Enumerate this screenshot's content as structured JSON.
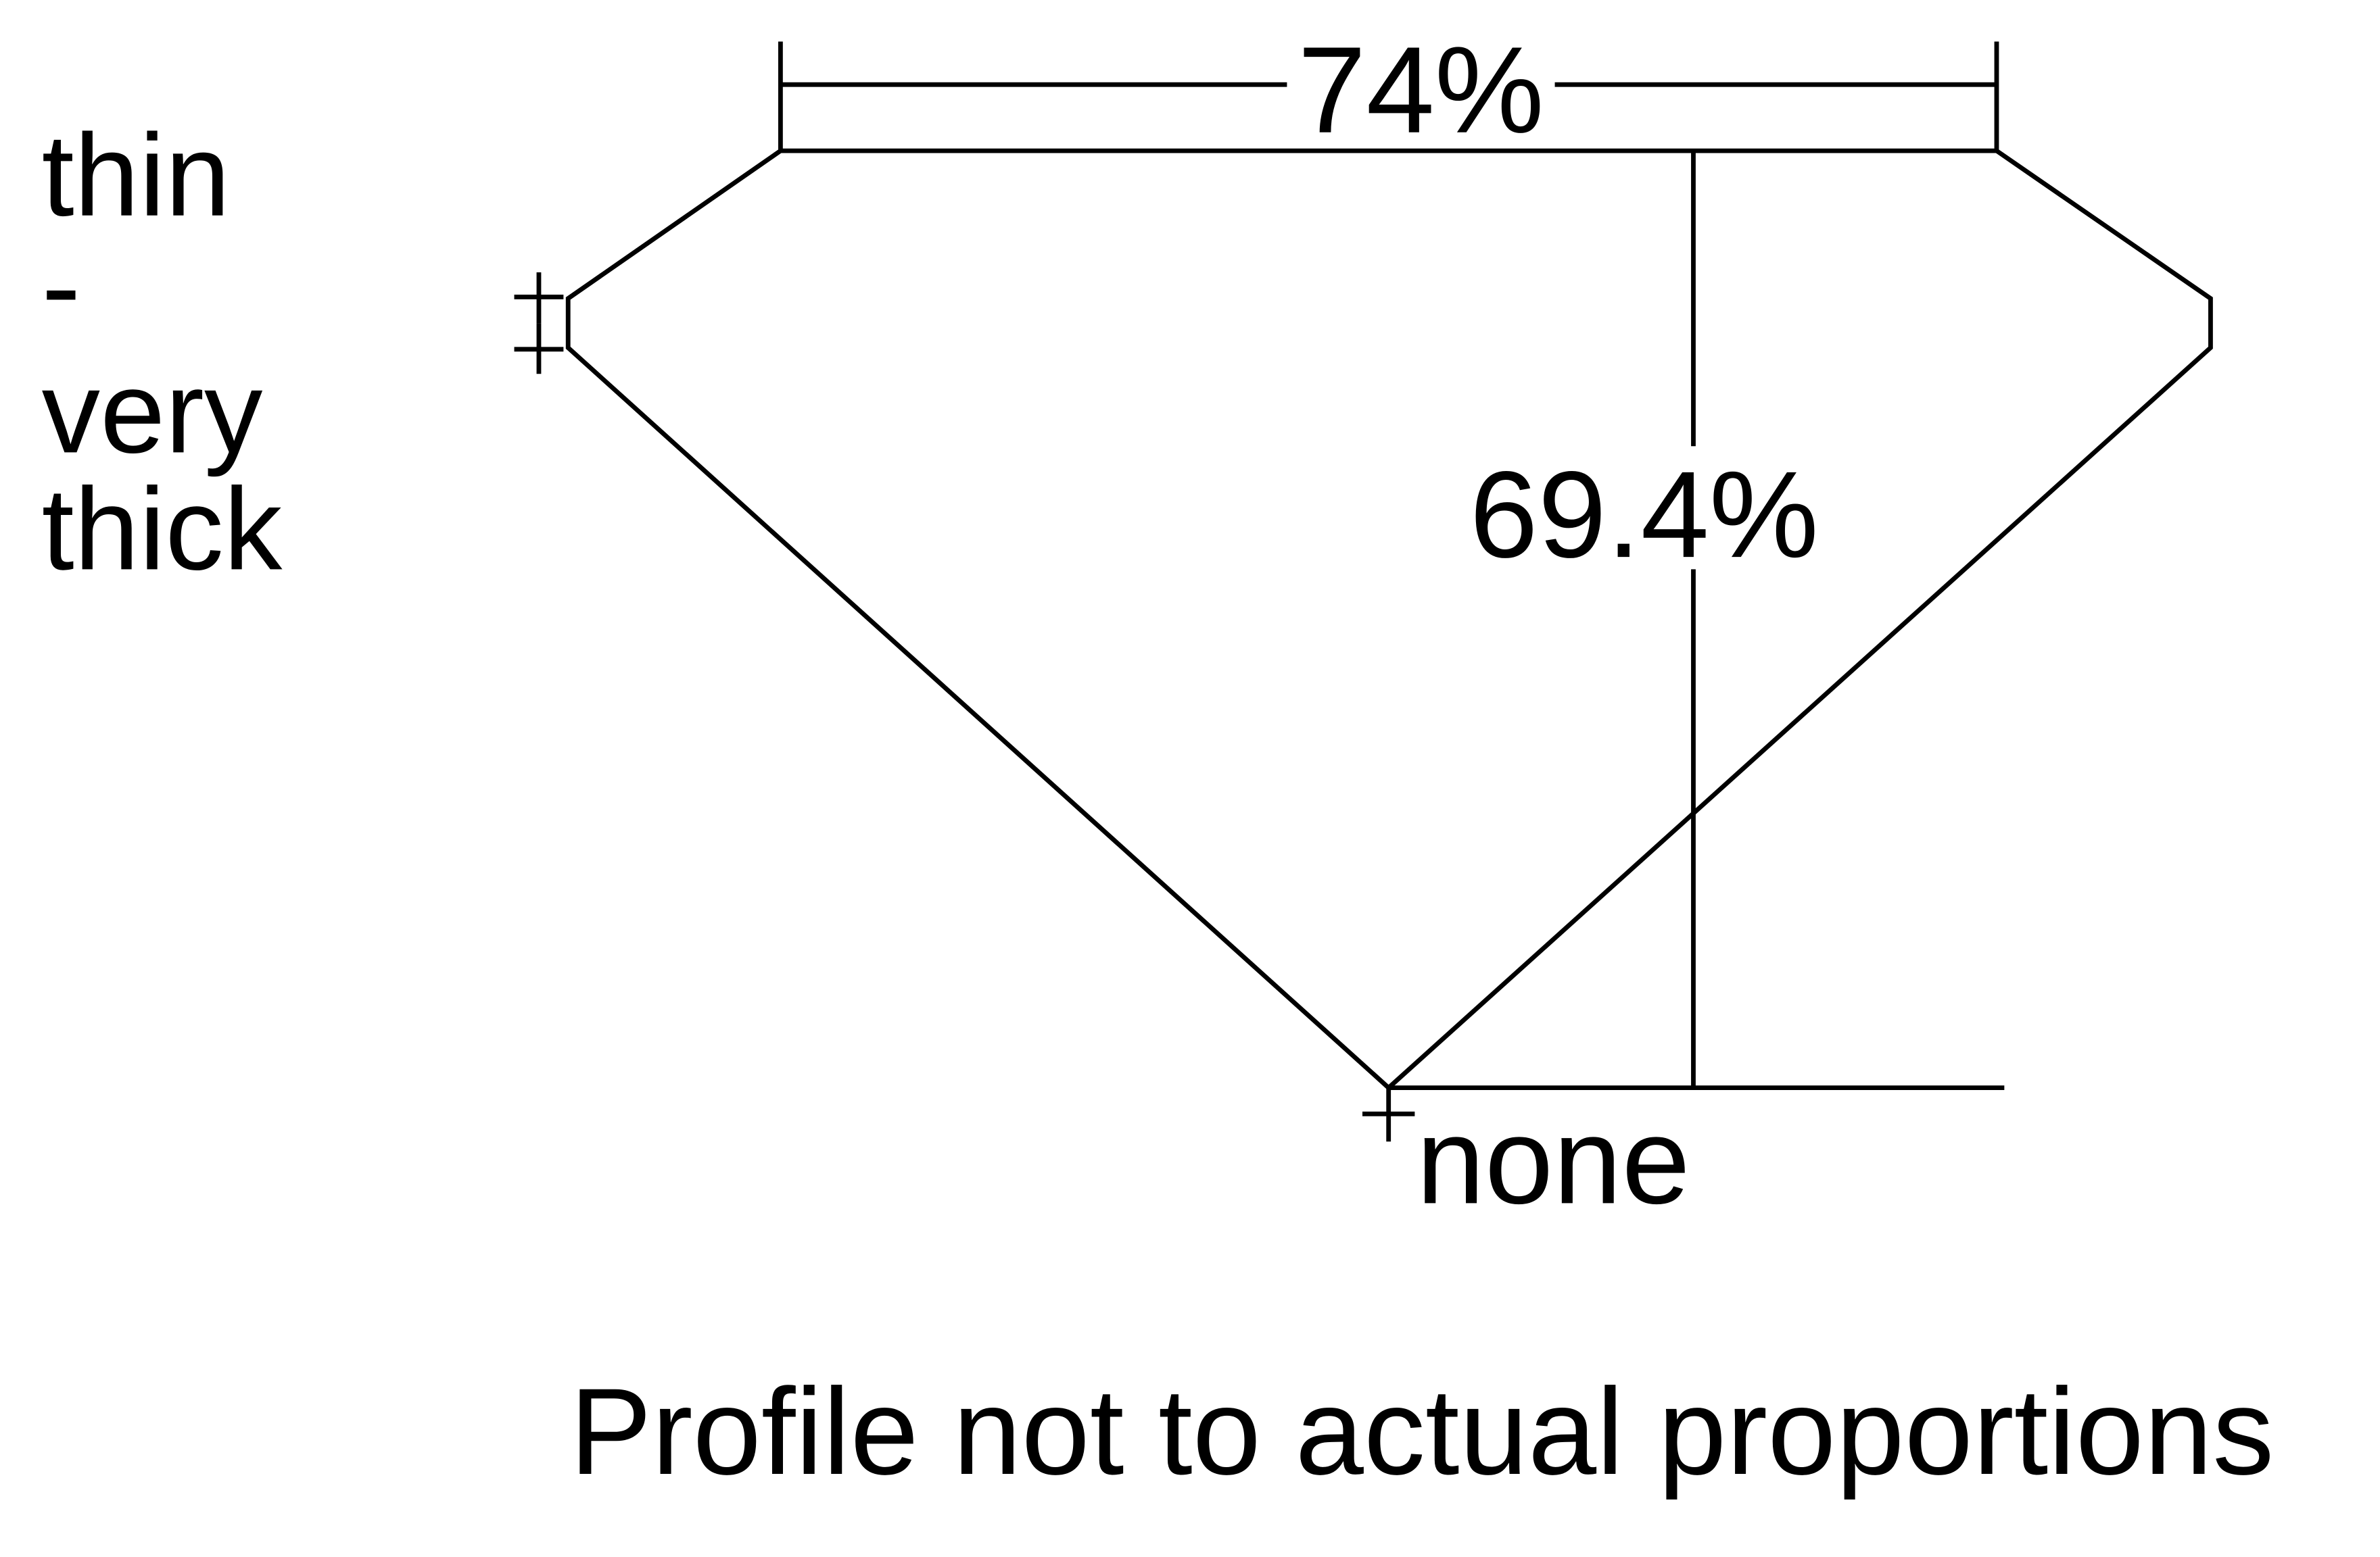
{
  "diagram": {
    "table_percent": "74%",
    "depth_percent": "69.4%",
    "girdle_label": [
      "thin",
      "-",
      "very",
      "thick"
    ],
    "culet_label": "none",
    "caption": "Profile not to actual proportions",
    "line_color": "#000000",
    "background_color": "#ffffff"
  }
}
